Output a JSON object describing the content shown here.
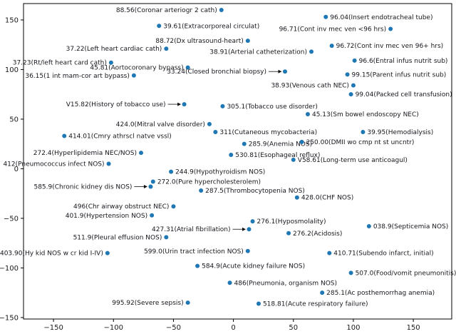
{
  "chart_data": {
    "type": "scatter",
    "title": "",
    "xlabel": "",
    "ylabel": "",
    "xlim": [
      -175,
      182
    ],
    "ylim": [
      -151.5,
      166.5
    ],
    "xticks": [
      -150,
      -100,
      -50,
      0,
      50,
      100,
      150
    ],
    "yticks": [
      -150,
      -100,
      -50,
      0,
      50,
      100,
      150
    ],
    "grid": false,
    "legend": null,
    "marker_color": "#1f77b4",
    "marker_radius": 3,
    "label_color": "#16161d",
    "tick_color": "#1a1a1a",
    "spine_color": "#000000",
    "points": [
      {
        "label": "88.56(Coronar arteriogr 2 cath)",
        "x": -10,
        "y": 160,
        "side": "left",
        "arrow": false
      },
      {
        "label": "96.04(Insert endotracheal tube)",
        "x": 77,
        "y": 153,
        "side": "right",
        "arrow": false
      },
      {
        "label": "39.61(Extracorporeal circulat)",
        "x": -62,
        "y": 144,
        "side": "right",
        "arrow": false
      },
      {
        "label": "96.71(Cont inv mec ven <96 hrs)",
        "x": 131,
        "y": 141,
        "side": "left",
        "arrow": false
      },
      {
        "label": "88.72(Dx ultrasound-heart)",
        "x": 12,
        "y": 129,
        "side": "left",
        "arrow": false
      },
      {
        "label": "38.91(Arterial catheterization)",
        "x": 65,
        "y": 118,
        "side": "left",
        "arrow": false
      },
      {
        "label": "96.72(Cont inv mec ven 96+ hrs)",
        "x": 82,
        "y": 124,
        "side": "right",
        "arrow": false
      },
      {
        "label": "37.22(Left heart cardiac cath)",
        "x": -56,
        "y": 121,
        "side": "left",
        "arrow": false
      },
      {
        "label": "37.23(Rt/left heart card cath)",
        "x": -102,
        "y": 107,
        "side": "left",
        "arrow": false
      },
      {
        "label": "45.81(Aortocoronary bypass)",
        "x": -38,
        "y": 102,
        "side": "left",
        "arrow": false
      },
      {
        "label": "96.6(Entral infus nutrit sub)",
        "x": 101,
        "y": 109,
        "side": "right",
        "arrow": false
      },
      {
        "label": "36.15(1 int mam-cor art bypass)",
        "x": -83,
        "y": 94,
        "side": "left",
        "arrow": false
      },
      {
        "label": "33.24(Closed bronchial biopsy)",
        "x": 43,
        "y": 98,
        "side": "left",
        "arrow": true
      },
      {
        "label": "99.15(Parent infus nutrit sub)",
        "x": 95,
        "y": 95,
        "side": "right",
        "arrow": false
      },
      {
        "label": "38.93(Venous cath NEC)",
        "x": 100,
        "y": 84,
        "side": "left",
        "arrow": false
      },
      {
        "label": "99.04(Packed cell transfusion)",
        "x": 98,
        "y": 75,
        "side": "right",
        "arrow": false
      },
      {
        "label": "V15.82(History of tobacco use)",
        "x": -41,
        "y": 65,
        "side": "left",
        "arrow": true
      },
      {
        "label": "305.1(Tobacco use disorder)",
        "x": -9,
        "y": 63,
        "side": "right",
        "arrow": false
      },
      {
        "label": "45.13(Sm bowel endoscopy NEC)",
        "x": 62,
        "y": 55,
        "side": "right",
        "arrow": false
      },
      {
        "label": "424.0(Mitral valve disorder)",
        "x": -20,
        "y": 45,
        "side": "left",
        "arrow": false
      },
      {
        "label": "311(Cutaneous mycobacteria)",
        "x": -15,
        "y": 37,
        "side": "right",
        "arrow": false
      },
      {
        "label": "39.95(Hemodialysis)",
        "x": 108,
        "y": 37,
        "side": "right",
        "arrow": false
      },
      {
        "label": "414.01(Cmry athrscl natve vssl)",
        "x": -141,
        "y": 33,
        "side": "right",
        "arrow": false
      },
      {
        "label": "285.9(Anemia NOS)",
        "x": 9,
        "y": 25,
        "side": "right",
        "arrow": false
      },
      {
        "label": "250.00(DMII wo cmp nt st uncntr)",
        "x": 57,
        "y": 27,
        "side": "right",
        "arrow": false
      },
      {
        "label": "272.4(Hyperlipidemia NEC/NOS)",
        "x": -77,
        "y": 16,
        "side": "left",
        "arrow": false
      },
      {
        "label": "530.81(Esophageal reflux)",
        "x": -2,
        "y": 14,
        "side": "right",
        "arrow": false
      },
      {
        "label": "V58.61(Long-term use anticoagul)",
        "x": 50,
        "y": 9,
        "side": "right",
        "arrow": false
      },
      {
        "label": "412(Pneumococcus infect NOS)",
        "x": -104,
        "y": 5,
        "side": "left",
        "arrow": false
      },
      {
        "label": "244.9(Hypothyroidism NOS)",
        "x": -52,
        "y": -3,
        "side": "right",
        "arrow": false
      },
      {
        "label": "272.0(Pure hypercholesterolem)",
        "x": -67,
        "y": -13,
        "side": "right",
        "arrow": false
      },
      {
        "label": "585.9(Chronic kidney dis NOS)",
        "x": -69,
        "y": -18,
        "side": "left",
        "arrow": true
      },
      {
        "label": "287.5(Thrombocytopenia NOS)",
        "x": -27,
        "y": -22,
        "side": "right",
        "arrow": false
      },
      {
        "label": "428.0(CHF NOS)",
        "x": 53,
        "y": -29,
        "side": "right",
        "arrow": false
      },
      {
        "label": "496(Chr airway obstruct NEC)",
        "x": -50,
        "y": -38,
        "side": "left",
        "arrow": false
      },
      {
        "label": "401.9(Hypertension NOS)",
        "x": -68,
        "y": -47,
        "side": "left",
        "arrow": false
      },
      {
        "label": "276.1(Hyposmolality)",
        "x": 16,
        "y": -53,
        "side": "right",
        "arrow": false
      },
      {
        "label": "038.9(Septicemia NOS)",
        "x": 113,
        "y": -58,
        "side": "right",
        "arrow": false
      },
      {
        "label": "427.31(Atrial fibrillation)",
        "x": 13,
        "y": -61,
        "side": "left",
        "arrow": true
      },
      {
        "label": "511.9(Pleural effusion NOS)",
        "x": -56,
        "y": -69,
        "side": "left",
        "arrow": false
      },
      {
        "label": "276.2(Acidosis)",
        "x": 46,
        "y": -65,
        "side": "right",
        "arrow": false
      },
      {
        "label": "599.0(Urin tract infection NOS)",
        "x": 12,
        "y": -83,
        "side": "left",
        "arrow": false
      },
      {
        "label": "403.90(Hy kid NOS w cr kid I-IV)",
        "x": -105,
        "y": -85,
        "side": "left",
        "arrow": false
      },
      {
        "label": "410.71(Subendo infarct, initial)",
        "x": 80,
        "y": -85,
        "side": "right",
        "arrow": false
      },
      {
        "label": "584.9(Acute kidney failure NOS)",
        "x": -30,
        "y": -98,
        "side": "right",
        "arrow": false
      },
      {
        "label": "507.0(Food/vomit pneumonitis)",
        "x": 98,
        "y": -105,
        "side": "right",
        "arrow": false
      },
      {
        "label": "486(Pneumonia, organism NOS)",
        "x": -3,
        "y": -115,
        "side": "right",
        "arrow": false
      },
      {
        "label": "285.1(Ac posthemorrhag anemia)",
        "x": 74,
        "y": -125,
        "side": "right",
        "arrow": false
      },
      {
        "label": "995.92(Severe sepsis)",
        "x": -38,
        "y": -135,
        "side": "left",
        "arrow": false
      },
      {
        "label": "518.81(Acute respiratory failure)",
        "x": 21,
        "y": -136,
        "side": "right",
        "arrow": false
      }
    ]
  }
}
